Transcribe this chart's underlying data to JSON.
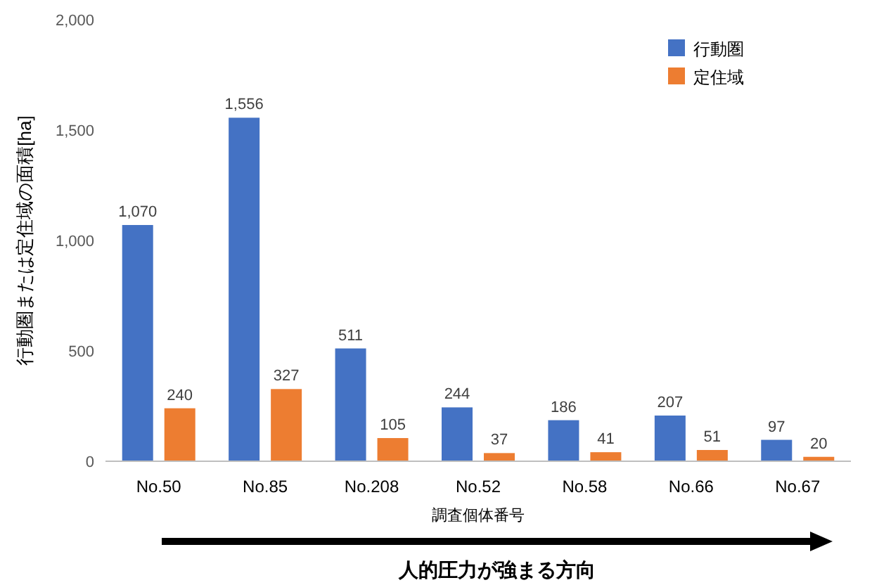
{
  "chart_data": {
    "type": "bar",
    "categories": [
      "No.50",
      "No.85",
      "No.208",
      "No.52",
      "No.58",
      "No.66",
      "No.67"
    ],
    "series": [
      {
        "name": "行動圏",
        "color": "#4472c4",
        "values": [
          1070,
          1556,
          511,
          244,
          186,
          207,
          97
        ],
        "value_labels": [
          "1,070",
          "1,556",
          "511",
          "244",
          "186",
          "207",
          "97"
        ]
      },
      {
        "name": "定住域",
        "color": "#ed7d31",
        "values": [
          240,
          327,
          105,
          37,
          41,
          51,
          20
        ],
        "value_labels": [
          "240",
          "327",
          "105",
          "37",
          "41",
          "51",
          "20"
        ]
      }
    ],
    "ylim": [
      0,
      2000
    ],
    "yticks": [
      {
        "value": 0,
        "label": "0"
      },
      {
        "value": 500,
        "label": "500"
      },
      {
        "value": 1000,
        "label": "1,000"
      },
      {
        "value": 1500,
        "label": "1,500"
      },
      {
        "value": 2000,
        "label": "2,000"
      }
    ],
    "ylabel": "行動圏または定住域の面積[ha]",
    "xlabel": "調査個体番号",
    "legend": "top right",
    "annotations": [
      "人的圧力が強まる方向"
    ]
  }
}
